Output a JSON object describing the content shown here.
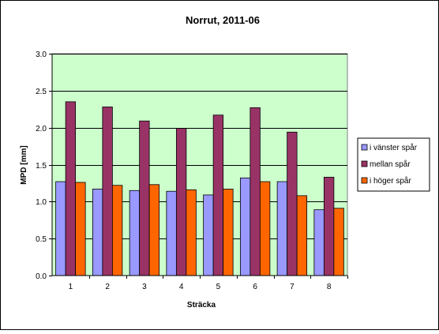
{
  "chart_data": {
    "type": "bar",
    "title": "Norrut, 2011-06",
    "xlabel": "Sträcka",
    "ylabel": "MPD [mm]",
    "categories": [
      "1",
      "2",
      "3",
      "4",
      "5",
      "6",
      "7",
      "8"
    ],
    "ylim": [
      0,
      3.0
    ],
    "yticks": [
      "0.0",
      "0.5",
      "1.0",
      "1.5",
      "2.0",
      "2.5",
      "3.0"
    ],
    "grid": true,
    "legend_position": "right",
    "series": [
      {
        "name": "i vänster spår",
        "color": "#9999ff",
        "values": [
          1.27,
          1.17,
          1.15,
          1.14,
          1.09,
          1.32,
          1.27,
          0.89
        ]
      },
      {
        "name": "mellan spår",
        "color": "#993366",
        "values": [
          2.35,
          2.28,
          2.09,
          1.99,
          2.17,
          2.27,
          1.94,
          1.33
        ]
      },
      {
        "name": "i höger spår",
        "color": "#ff6600",
        "values": [
          1.26,
          1.22,
          1.23,
          1.16,
          1.17,
          1.27,
          1.08,
          0.91
        ]
      }
    ],
    "plot_background": "#ccffcc"
  }
}
